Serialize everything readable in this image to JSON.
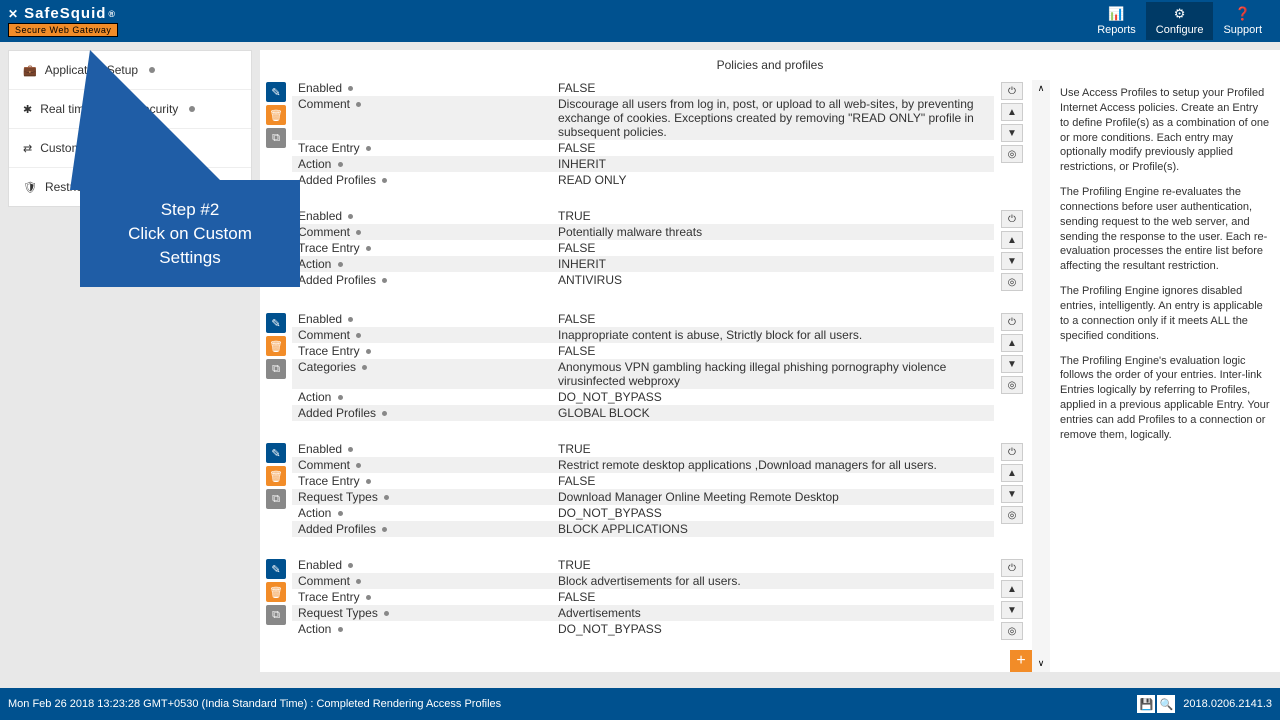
{
  "brand": {
    "name": "SafeSquid",
    "reg": "®",
    "tagline": "Secure Web Gateway"
  },
  "nav": {
    "reports": "Reports",
    "configure": "Configure",
    "support": "Support"
  },
  "sidebar": {
    "items": [
      {
        "icon": "💼",
        "label": "Application Setup"
      },
      {
        "icon": "✱",
        "label": "Real time content security"
      },
      {
        "icon": "⇄",
        "label": "Custom Settings"
      },
      {
        "icon": "🛡",
        "label": "Restriction Policies"
      }
    ]
  },
  "main_title": "Policies and profiles",
  "fields": {
    "enabled": "Enabled",
    "comment": "Comment",
    "trace": "Trace Entry",
    "action": "Action",
    "added": "Added Profiles",
    "categories": "Categories",
    "reqtypes": "Request Types"
  },
  "entries": [
    {
      "enabled": "FALSE",
      "comment": "Discourage all users from log in, post, or upload to all web-sites, by preventing exchange of cookies.\nExceptions created by removing \"READ ONLY\" profile in subsequent policies.",
      "trace": "FALSE",
      "action": "INHERIT",
      "added": "READ ONLY"
    },
    {
      "enabled": "TRUE",
      "comment": "Potentially malware threats",
      "trace": "FALSE",
      "action": "INHERIT",
      "added": "ANTIVIRUS"
    },
    {
      "enabled": "FALSE",
      "comment": "Inappropriate content is abuse, Strictly block for all users.",
      "trace": "FALSE",
      "categories": "Anonymous VPN   gambling   hacking   illegal   phishing   pornography   violence   virusinfected   webproxy",
      "action": "DO_NOT_BYPASS",
      "added": "GLOBAL BLOCK"
    },
    {
      "enabled": "TRUE",
      "comment": "Restrict remote desktop applications ,Download managers for all users.",
      "trace": "FALSE",
      "reqtypes": "Download Manager   Online Meeting   Remote Desktop",
      "action": "DO_NOT_BYPASS",
      "added": "BLOCK APPLICATIONS"
    },
    {
      "enabled": "TRUE",
      "comment": "Block advertisements for all users.",
      "trace": "FALSE",
      "reqtypes": "Advertisements",
      "action": "DO_NOT_BYPASS"
    }
  ],
  "hint": {
    "p1": "Use Access Profiles to setup your Profiled Internet Access policies. Create an Entry to define Profile(s) as a combination of one or more conditions. Each entry may optionally modify previously applied restrictions, or Profile(s).",
    "p2": "The Profiling Engine re-evaluates the connections before user authentication, sending request to the web server, and sending the response to the user. Each re-evaluation processes the entire list before affecting the resultant restriction.",
    "p3": "The Profiling Engine ignores disabled entries, intelligently. An entry is applicable to a connection only if it meets ALL the specified conditions.",
    "p4": "The Profiling Engine's evaluation logic follows the order of your entries. Inter-link Entries logically by referring to Profiles, applied in a previous applicable Entry. Your entries can add Profiles to a connection or remove them, logically."
  },
  "callout": {
    "title": "Step #2",
    "text": "Click on Custom Settings"
  },
  "status": "Mon Feb 26 2018 13:23:28 GMT+0530 (India Standard Time) : Completed Rendering Access Profiles",
  "version": "2018.0206.2141.3"
}
